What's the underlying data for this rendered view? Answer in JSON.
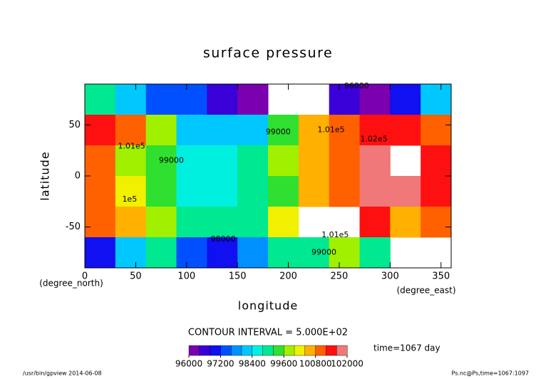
{
  "chart_data": {
    "type": "heatmap",
    "title": "surface pressure",
    "xlabel": "longitude",
    "ylabel": "latitude",
    "xunit": "(degree_east)",
    "yunit": "(degree_north)",
    "x": [
      15,
      45,
      75,
      105,
      135,
      165,
      195,
      225,
      255,
      285,
      315,
      345
    ],
    "y": [
      75,
      45,
      15,
      -15,
      -45,
      -75
    ],
    "z": [
      [
        98800,
        98200,
        97400,
        97200,
        96500,
        96200,
        null,
        null,
        96500,
        96300,
        97000,
        98000
      ],
      [
        101500,
        100900,
        99700,
        98300,
        98000,
        98200,
        99200,
        100400,
        101000,
        101500,
        101400,
        101000
      ],
      [
        100800,
        99900,
        99300,
        98600,
        98400,
        98900,
        99700,
        100500,
        101000,
        101600,
        null,
        101500
      ],
      [
        100900,
        100300,
        99200,
        98700,
        98600,
        99000,
        99300,
        100400,
        101000,
        101700,
        101600,
        101500
      ],
      [
        100900,
        100500,
        99800,
        99000,
        98900,
        99100,
        100300,
        null,
        null,
        101200,
        100600,
        100900
      ],
      [
        97000,
        98200,
        99000,
        97300,
        97000,
        97900,
        98800,
        99100,
        99800,
        99000,
        null,
        null
      ]
    ],
    "xlim": [
      0,
      360
    ],
    "ylim": [
      -90,
      90
    ],
    "xticks": [
      0,
      50,
      100,
      150,
      200,
      250,
      300,
      350
    ],
    "yticks": [
      -50,
      0,
      50
    ],
    "clim": [
      96000,
      102000
    ],
    "cticks": [
      96000,
      97200,
      98400,
      99600,
      100800,
      102000
    ],
    "colors": [
      "#7a00b0",
      "#3a00d8",
      "#1010f0",
      "#0050ff",
      "#0090ff",
      "#00c8ff",
      "#00f0e0",
      "#00e890",
      "#30e030",
      "#a0f000",
      "#f0f000",
      "#ffb000",
      "#ff6000",
      "#ff1010",
      "#f07878"
    ],
    "annotations": [
      {
        "text": "96000",
        "x": 267,
        "y": 88
      },
      {
        "text": "1.01e5",
        "x": 46,
        "y": 29
      },
      {
        "text": "99000",
        "x": 85,
        "y": 15
      },
      {
        "text": "1e5",
        "x": 44,
        "y": -23
      },
      {
        "text": "98000",
        "x": 136,
        "y": -62
      },
      {
        "text": "99000",
        "x": 235,
        "y": -75
      },
      {
        "text": "1.01e5",
        "x": 246,
        "y": -58
      },
      {
        "text": "1.02e5",
        "x": 284,
        "y": 36
      },
      {
        "text": "1.01e5",
        "x": 242,
        "y": 45
      },
      {
        "text": "99000",
        "x": 190,
        "y": 43
      }
    ],
    "contour_interval": "CONTOUR INTERVAL = 5.000E+02",
    "time_label": "time=1067 day",
    "footer_left": "/usr/bin/gpview  2014-06-08",
    "footer_right": "Ps.nc@Ps,time=1067:1097"
  }
}
